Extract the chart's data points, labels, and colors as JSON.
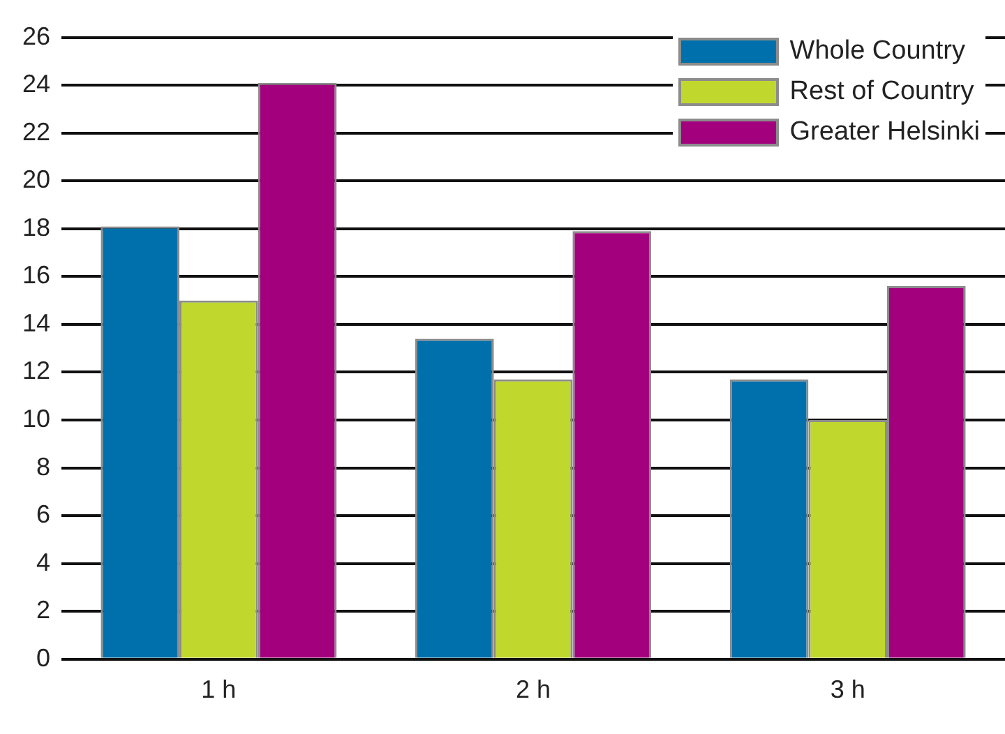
{
  "chart_data": {
    "type": "bar",
    "categories": [
      "1 h",
      "2 h",
      "3 h"
    ],
    "series": [
      {
        "name": "Whole Country",
        "color": "#0070ac",
        "values": [
          18.1,
          13.4,
          11.7
        ]
      },
      {
        "name": "Rest of Country",
        "color": "#c0d72e",
        "values": [
          15.0,
          11.7,
          10.0
        ]
      },
      {
        "name": "Greater Helsinki",
        "color": "#a3007d",
        "values": [
          24.1,
          17.9,
          15.6
        ]
      }
    ],
    "ylim": [
      0,
      26
    ],
    "yticks": [
      0,
      2,
      4,
      6,
      8,
      10,
      12,
      14,
      16,
      18,
      20,
      22,
      24,
      26
    ],
    "grid": "y",
    "legend": "top right"
  }
}
